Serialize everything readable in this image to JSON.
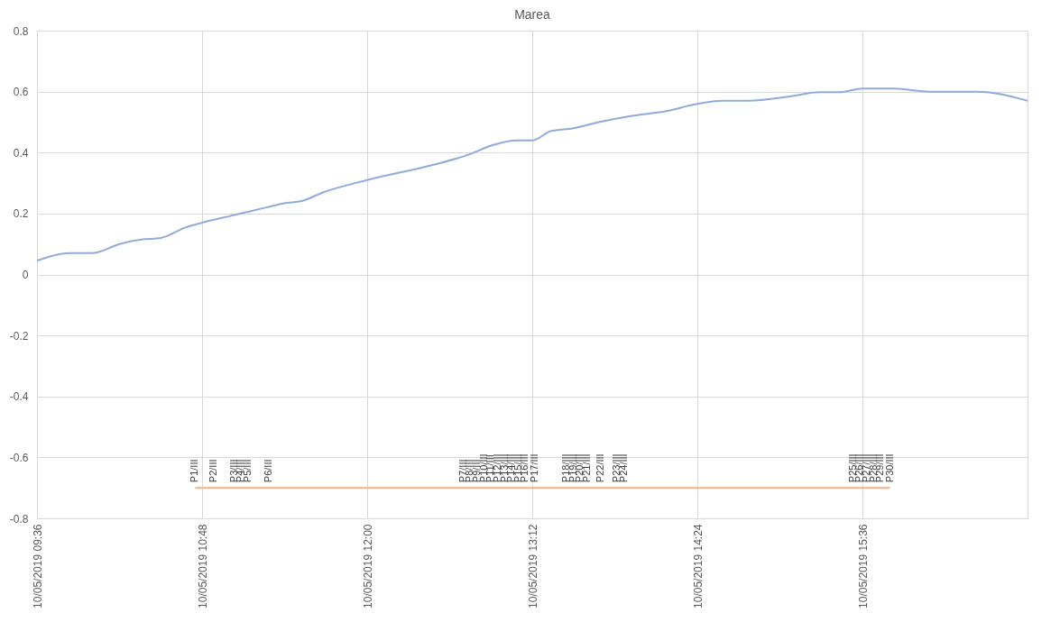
{
  "chart_data": {
    "type": "line",
    "title": "Marea",
    "xlim": [
      "2019-05-10T09:36",
      "2019-05-10T16:48"
    ],
    "xticks": [
      {
        "value": "2019-05-10T09:36",
        "label": "10/05/2019 09:36"
      },
      {
        "value": "2019-05-10T10:48",
        "label": "10/05/2019 10:48"
      },
      {
        "value": "2019-05-10T12:00",
        "label": "10/05/2019 12:00"
      },
      {
        "value": "2019-05-10T13:12",
        "label": "10/05/2019 13:12"
      },
      {
        "value": "2019-05-10T14:24",
        "label": "10/05/2019 14:24"
      },
      {
        "value": "2019-05-10T15:36",
        "label": "10/05/2019 15:36"
      },
      {
        "value": "2019-05-10T16:48",
        "label": null
      }
    ],
    "ylim": [
      -0.8,
      0.8
    ],
    "yticks": [
      -0.8,
      -0.6,
      -0.4,
      -0.2,
      0,
      0.2,
      0.4,
      0.6,
      0.8
    ],
    "grid": true,
    "marker": "none",
    "line_style": "solid",
    "series": [
      {
        "color": "#8faadc",
        "x": [
          "2019-05-10T09:36",
          "2019-05-10T09:50",
          "2019-05-10T10:00",
          "2019-05-10T10:12",
          "2019-05-10T10:22",
          "2019-05-10T10:30",
          "2019-05-10T10:41",
          "2019-05-10T10:48",
          "2019-05-10T11:02",
          "2019-05-10T11:16",
          "2019-05-10T11:25",
          "2019-05-10T11:31",
          "2019-05-10T11:41",
          "2019-05-10T12:00",
          "2019-05-10T12:29",
          "2019-05-10T12:43",
          "2019-05-10T12:55",
          "2019-05-10T13:05",
          "2019-05-10T13:12",
          "2019-05-10T13:20",
          "2019-05-10T13:30",
          "2019-05-10T13:41",
          "2019-05-10T13:55",
          "2019-05-10T14:10",
          "2019-05-10T14:24",
          "2019-05-10T14:35",
          "2019-05-10T14:46",
          "2019-05-10T15:05",
          "2019-05-10T15:17",
          "2019-05-10T15:26",
          "2019-05-10T15:36",
          "2019-05-10T15:50",
          "2019-05-10T16:05",
          "2019-05-10T16:26",
          "2019-05-10T16:48"
        ],
        "values": [
          0.045,
          0.07,
          0.07,
          0.1,
          0.115,
          0.12,
          0.155,
          0.17,
          0.195,
          0.22,
          0.235,
          0.24,
          0.27,
          0.31,
          0.36,
          0.39,
          0.425,
          0.44,
          0.44,
          0.47,
          0.48,
          0.5,
          0.52,
          0.535,
          0.56,
          0.57,
          0.57,
          0.585,
          0.598,
          0.598,
          0.61,
          0.61,
          0.6,
          0.6,
          0.57
        ]
      },
      {
        "color": "#f4b183",
        "x": [
          "2019-05-10T10:45",
          "2019-05-10T10:53",
          "2019-05-10T11:02",
          "2019-05-10T11:05",
          "2019-05-10T11:08",
          "2019-05-10T11:17",
          "2019-05-10T12:42",
          "2019-05-10T12:45",
          "2019-05-10T12:48",
          "2019-05-10T12:51",
          "2019-05-10T12:54",
          "2019-05-10T12:57",
          "2019-05-10T13:00",
          "2019-05-10T13:03",
          "2019-05-10T13:06",
          "2019-05-10T13:09",
          "2019-05-10T13:13",
          "2019-05-10T13:27",
          "2019-05-10T13:30",
          "2019-05-10T13:33",
          "2019-05-10T13:36",
          "2019-05-10T13:42",
          "2019-05-10T13:49",
          "2019-05-10T13:52",
          "2019-05-10T15:32",
          "2019-05-10T15:35",
          "2019-05-10T15:38",
          "2019-05-10T15:41",
          "2019-05-10T15:44",
          "2019-05-10T15:48"
        ],
        "values": [
          -0.7,
          -0.7,
          -0.7,
          -0.7,
          -0.7,
          -0.7,
          -0.7,
          -0.7,
          -0.7,
          -0.7,
          -0.7,
          -0.7,
          -0.7,
          -0.7,
          -0.7,
          -0.7,
          -0.7,
          -0.7,
          -0.7,
          -0.7,
          -0.7,
          -0.7,
          -0.7,
          -0.7,
          -0.7,
          -0.7,
          -0.7,
          -0.7,
          -0.7,
          -0.7
        ],
        "value_labels": [
          "P1/III",
          "P2/III",
          "P3/III",
          "P4/III",
          "P5/III",
          "P6/III",
          "P7/III",
          "P8/III",
          "P9/III",
          "P10/III",
          "P11/III",
          "P12/III",
          "P13/III",
          "P14/III",
          "P15/III",
          "P16/III",
          "P17/III",
          "P18/III",
          "P19/III",
          "P20/III",
          "P21/III",
          "P22/III",
          "P23/III",
          "P24/III",
          "P25/III",
          "P26/III",
          "P27/III",
          "P28/III",
          "P29/III",
          "P30/III"
        ]
      }
    ]
  }
}
